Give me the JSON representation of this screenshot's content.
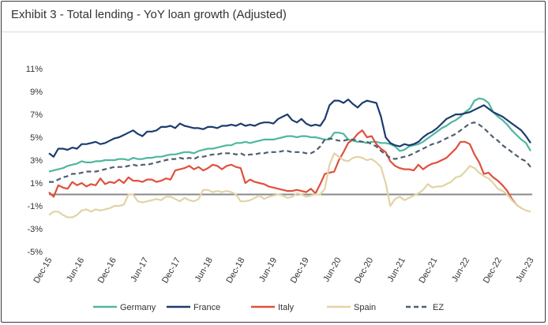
{
  "title": "Exhibit 3 - Total lending - YoY loan growth (Adjusted)",
  "chart_data": {
    "type": "line",
    "title": "Exhibit 3 - Total lending - YoY loan growth (Adjusted)",
    "xlabel": "",
    "ylabel": "",
    "ylim": [
      -5,
      11
    ],
    "y_ticks": [
      "11%",
      "9%",
      "7%",
      "5%",
      "3%",
      "1%",
      "-1%",
      "-3%",
      "-5%"
    ],
    "y_tick_values": [
      11,
      9,
      7,
      5,
      3,
      1,
      -1,
      -3,
      -5
    ],
    "x_ticks": [
      "Dec-15",
      "Jun-16",
      "Dec-16",
      "Jun-17",
      "Dec-17",
      "Jun-18",
      "Dec-18",
      "Jun-19",
      "Dec-19",
      "Jun-20",
      "Dec-20",
      "Jun-21",
      "Dec-21",
      "Jun-22",
      "Dec-22",
      "Jun-23"
    ],
    "x_start": "Dec-15",
    "x_end": "Jun-23",
    "zero_line": true,
    "legend_position": "bottom",
    "series": [
      {
        "name": "Germany",
        "color": "#4fb79f",
        "dash": "solid",
        "values": [
          2.0,
          2.1,
          2.2,
          2.3,
          2.5,
          2.6,
          2.7,
          2.9,
          2.8,
          2.8,
          2.9,
          2.9,
          3.0,
          3.0,
          3.0,
          3.1,
          3.1,
          3.0,
          3.2,
          3.1,
          3.1,
          3.2,
          3.2,
          3.3,
          3.3,
          3.4,
          3.5,
          3.5,
          3.6,
          3.7,
          3.7,
          3.6,
          3.8,
          3.9,
          4.0,
          4.0,
          4.1,
          4.2,
          4.3,
          4.3,
          4.5,
          4.5,
          4.6,
          4.5,
          4.6,
          4.7,
          4.8,
          4.8,
          4.8,
          4.9,
          5.0,
          5.1,
          5.1,
          5.0,
          5.1,
          5.1,
          5.0,
          5.0,
          4.9,
          4.8,
          4.8,
          5.4,
          5.4,
          5.3,
          4.8,
          4.7,
          4.6,
          4.6,
          4.5,
          4.6,
          4.6,
          4.5,
          4.5,
          4.4,
          4.2,
          3.8,
          3.9,
          4.2,
          4.3,
          4.4,
          4.6,
          4.9,
          5.2,
          5.5,
          5.8,
          6.0,
          6.3,
          6.5,
          6.8,
          7.2,
          7.5,
          8.2,
          8.4,
          8.3,
          8.0,
          7.2,
          6.8,
          6.5,
          6.1,
          5.6,
          5.2,
          4.8,
          4.5,
          3.8
        ]
      },
      {
        "name": "France",
        "color": "#1c3c6e",
        "dash": "solid",
        "values": [
          3.6,
          3.3,
          4.0,
          4.0,
          3.9,
          4.1,
          4.0,
          4.4,
          4.4,
          4.5,
          4.6,
          4.4,
          4.5,
          4.7,
          4.9,
          5.0,
          5.2,
          5.4,
          5.6,
          5.3,
          5.1,
          5.5,
          5.5,
          5.6,
          5.9,
          5.9,
          6.0,
          5.8,
          6.2,
          6.0,
          5.9,
          5.8,
          5.8,
          5.7,
          5.9,
          5.9,
          5.8,
          6.0,
          6.0,
          6.1,
          6.0,
          6.2,
          6.0,
          6.1,
          6.0,
          6.2,
          6.3,
          6.3,
          6.2,
          6.6,
          6.8,
          7.0,
          6.5,
          6.3,
          6.6,
          6.2,
          6.0,
          6.1,
          6.0,
          6.6,
          7.8,
          8.2,
          8.2,
          8.0,
          8.3,
          7.9,
          7.6,
          8.0,
          8.2,
          8.1,
          8.0,
          6.8,
          5.0,
          4.5,
          4.3,
          4.2,
          4.4,
          4.3,
          4.4,
          4.6,
          5.0,
          5.3,
          5.5,
          5.8,
          6.2,
          6.6,
          6.8,
          7.0,
          7.0,
          7.1,
          7.2,
          7.4,
          7.6,
          7.8,
          7.5,
          7.2,
          7.0,
          6.8,
          6.5,
          6.2,
          5.9,
          5.6,
          5.1,
          4.5
        ]
      },
      {
        "name": "Italy",
        "color": "#e0503c",
        "dash": "solid",
        "values": [
          0.2,
          -0.2,
          0.8,
          0.6,
          0.5,
          1.1,
          0.8,
          1.0,
          0.7,
          0.9,
          0.8,
          1.4,
          0.9,
          1.1,
          1.0,
          1.3,
          1.0,
          1.5,
          1.2,
          1.2,
          1.1,
          1.3,
          1.3,
          1.1,
          1.2,
          1.4,
          1.3,
          2.1,
          2.2,
          2.3,
          2.5,
          2.2,
          2.4,
          2.1,
          2.3,
          2.6,
          2.5,
          2.2,
          2.5,
          2.6,
          2.4,
          2.3,
          1.0,
          1.3,
          1.1,
          1.0,
          0.9,
          0.7,
          0.6,
          0.5,
          0.4,
          0.3,
          0.3,
          0.4,
          0.3,
          0.2,
          0.5,
          0.1,
          0.9,
          1.8,
          1.9,
          2.0,
          3.0,
          3.7,
          4.5,
          4.8,
          5.3,
          5.6,
          5.0,
          5.1,
          4.4,
          4.0,
          3.7,
          2.9,
          2.5,
          2.3,
          2.2,
          2.2,
          2.1,
          2.6,
          2.2,
          2.5,
          2.7,
          2.8,
          3.0,
          3.2,
          3.6,
          4.0,
          4.6,
          4.6,
          4.4,
          3.5,
          2.8,
          1.8,
          1.9,
          1.5,
          1.2,
          0.8,
          0.3,
          -0.4,
          -0.9,
          -1.2
        ]
      },
      {
        "name": "Spain",
        "color": "#e2d3a5",
        "dash": "solid",
        "values": [
          -1.8,
          -1.5,
          -1.5,
          -1.8,
          -2.0,
          -2.0,
          -1.8,
          -1.4,
          -1.3,
          -1.5,
          -1.3,
          -1.4,
          -1.3,
          -1.2,
          -1.0,
          -1.0,
          -0.9,
          0.0,
          0.0,
          -0.6,
          -0.7,
          -0.6,
          -0.5,
          -0.4,
          -0.5,
          -0.2,
          -0.2,
          -0.4,
          -0.6,
          -0.3,
          -0.5,
          -0.6,
          -0.4,
          0.4,
          0.4,
          0.2,
          0.3,
          0.2,
          0.3,
          0.2,
          0.0,
          -0.6,
          -0.6,
          -0.5,
          -0.3,
          -0.1,
          -0.4,
          -0.2,
          -0.1,
          0.0,
          -0.1,
          -0.3,
          -0.2,
          0.1,
          0.0,
          -0.2,
          -0.1,
          0.0,
          0.0,
          0.5,
          2.6,
          3.6,
          3.3,
          3.0,
          2.9,
          3.2,
          3.3,
          3.2,
          3.0,
          3.1,
          2.8,
          2.4,
          1.0,
          -1.0,
          -0.4,
          -0.2,
          -0.5,
          -0.3,
          -0.1,
          0.1,
          0.4,
          0.9,
          0.6,
          0.7,
          0.7,
          0.9,
          1.1,
          1.5,
          1.6,
          2.0,
          2.5,
          2.3,
          1.9,
          1.6,
          1.4,
          1.0,
          0.5,
          0.3,
          0.0,
          -0.5,
          -0.9,
          -1.2,
          -1.4,
          -1.5
        ]
      },
      {
        "name": "EZ",
        "color": "#4f5e70",
        "dash": "dashed",
        "values": [
          1.1,
          1.1,
          1.3,
          1.5,
          1.6,
          1.8,
          1.8,
          1.9,
          2.0,
          2.0,
          2.0,
          2.1,
          2.2,
          2.3,
          2.4,
          2.4,
          2.4,
          2.5,
          2.6,
          2.5,
          2.6,
          2.6,
          2.7,
          2.8,
          2.9,
          3.0,
          3.1,
          3.1,
          3.2,
          3.1,
          3.2,
          3.1,
          3.3,
          3.3,
          3.4,
          3.5,
          3.5,
          3.6,
          3.6,
          3.6,
          3.5,
          3.6,
          3.4,
          3.5,
          3.5,
          3.6,
          3.6,
          3.7,
          3.7,
          3.7,
          3.8,
          3.8,
          3.7,
          3.7,
          3.7,
          3.6,
          3.6,
          3.8,
          4.2,
          4.8,
          4.9,
          4.8,
          4.7,
          4.7,
          4.8,
          4.8,
          4.7,
          4.6,
          4.6,
          4.4,
          4.2,
          3.8,
          3.5,
          3.2,
          3.1,
          3.2,
          3.3,
          3.4,
          3.6,
          3.8,
          4.0,
          4.2,
          4.4,
          4.5,
          4.7,
          4.9,
          5.1,
          5.3,
          5.6,
          5.9,
          6.2,
          6.3,
          6.1,
          5.8,
          5.4,
          5.0,
          4.7,
          4.3,
          4.0,
          3.7,
          3.4,
          3.1,
          2.9,
          2.4
        ]
      }
    ]
  },
  "legend": [
    {
      "name": "Germany",
      "color": "#4fb79f",
      "dash": "solid"
    },
    {
      "name": "France",
      "color": "#1c3c6e",
      "dash": "solid"
    },
    {
      "name": "Italy",
      "color": "#e0503c",
      "dash": "solid"
    },
    {
      "name": "Spain",
      "color": "#e2d3a5",
      "dash": "solid"
    },
    {
      "name": "EZ",
      "color": "#4f5e70",
      "dash": "dashed"
    }
  ]
}
